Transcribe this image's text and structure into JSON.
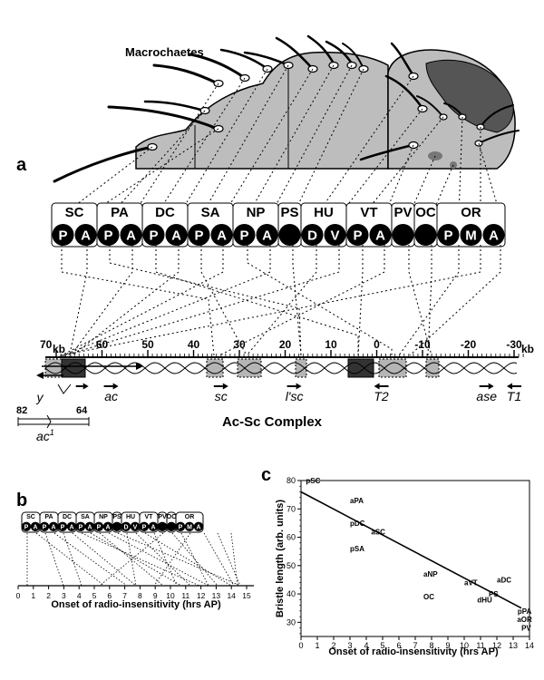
{
  "panels": {
    "a": "a",
    "b": "b",
    "c": "c"
  },
  "fly": {
    "label": "Macrochaetes"
  },
  "groups": [
    {
      "name": "SC",
      "bristles": [
        "P",
        "A"
      ]
    },
    {
      "name": "PA",
      "bristles": [
        "P",
        "A"
      ]
    },
    {
      "name": "DC",
      "bristles": [
        "P",
        "A"
      ]
    },
    {
      "name": "SA",
      "bristles": [
        "P",
        "A"
      ]
    },
    {
      "name": "NP",
      "bristles": [
        "P",
        "A"
      ]
    },
    {
      "name": "PS",
      "bristles": [
        ""
      ]
    },
    {
      "name": "HU",
      "bristles": [
        "D",
        "V"
      ]
    },
    {
      "name": "VT",
      "bristles": [
        "P",
        "A"
      ]
    },
    {
      "name": "PV",
      "bristles": [
        ""
      ]
    },
    {
      "name": "OC",
      "bristles": [
        ""
      ]
    },
    {
      "name": "OR",
      "bristles": [
        "P",
        "M",
        "A"
      ]
    }
  ],
  "genome": {
    "title": "Ac-Sc Complex",
    "scale": [
      {
        "v": 70,
        "t": "70"
      },
      {
        "v": 60,
        "t": "60"
      },
      {
        "v": 50,
        "t": "50"
      },
      {
        "v": 40,
        "t": "40"
      },
      {
        "v": 30,
        "t": "30"
      },
      {
        "v": 20,
        "t": "20"
      },
      {
        "v": 10,
        "t": "10"
      },
      {
        "v": 0,
        "t": "0"
      },
      {
        "v": -10,
        "t": "-10"
      },
      {
        "v": -20,
        "t": "-20"
      },
      {
        "v": -30,
        "t": "-30"
      }
    ],
    "unit": "kb",
    "genes": [
      {
        "label": "y",
        "kb": 66.5,
        "dir": "right"
      },
      {
        "label": "ac",
        "kb": 58,
        "dir": "right"
      },
      {
        "label": "sc",
        "kb": 34,
        "dir": "right"
      },
      {
        "label": "l'sc",
        "kb": 18,
        "dir": "right"
      },
      {
        "label": "T2",
        "kb": -1,
        "dir": "left"
      },
      {
        "label": "ase",
        "kb": -24,
        "dir": "right"
      },
      {
        "label": "T1",
        "kb": -30,
        "dir": "left"
      }
    ],
    "deletion": {
      "label": "ac",
      "sup": "1",
      "left": "82",
      "right": "64"
    }
  },
  "panel_b": {
    "xlabel": "Onset of radio-insensitivity (hrs AP)",
    "ticks": [
      "0",
      "1",
      "2",
      "3",
      "4",
      "5",
      "6",
      "7",
      "8",
      "9",
      "10",
      "11",
      "12",
      "13",
      "14",
      "15"
    ]
  },
  "chart_data": {
    "type": "scatter",
    "xlabel": "Onset of radio-insensitivity (hrs AP)",
    "ylabel": "Bristle length (arb. units)",
    "xlim": [
      0,
      14
    ],
    "ylim": [
      25,
      80
    ],
    "xticks": [
      "0",
      "1",
      "2",
      "3",
      "4",
      "5",
      "6",
      "7",
      "8",
      "9",
      "10",
      "11",
      "12",
      "13",
      "14"
    ],
    "yticks": [
      "30",
      "40",
      "50",
      "60",
      "70",
      "80"
    ],
    "points": [
      {
        "label": "pSC",
        "x": 0.3,
        "y": 80
      },
      {
        "label": "aPA",
        "x": 3,
        "y": 73
      },
      {
        "label": "pDC",
        "x": 3,
        "y": 65
      },
      {
        "label": "aSC",
        "x": 4.3,
        "y": 62
      },
      {
        "label": "pSA",
        "x": 3,
        "y": 56
      },
      {
        "label": "aNP",
        "x": 7.5,
        "y": 47
      },
      {
        "label": "OC",
        "x": 7.5,
        "y": 39
      },
      {
        "label": "aVT",
        "x": 10,
        "y": 44
      },
      {
        "label": "aDC",
        "x": 12,
        "y": 45
      },
      {
        "label": "PS",
        "x": 11.5,
        "y": 40
      },
      {
        "label": "dHU",
        "x": 10.8,
        "y": 38
      },
      {
        "label": "pPA",
        "x": 13.7,
        "y": 34
      },
      {
        "label": "aOR",
        "x": 13.7,
        "y": 31
      },
      {
        "label": "PV",
        "x": 13.8,
        "y": 28
      }
    ],
    "trend": {
      "x": [
        0,
        13.5
      ],
      "y": [
        76,
        35
      ]
    }
  }
}
